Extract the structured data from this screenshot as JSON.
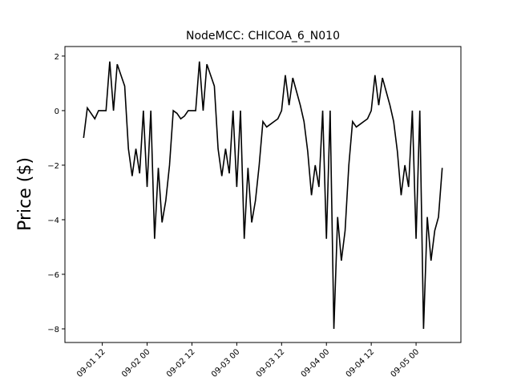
{
  "chart_data": {
    "type": "line",
    "title": "NodeMCC: CHICOA_6_N010",
    "ylabel": "Price ($)",
    "x": [
      "09-01 07",
      "09-01 08",
      "09-01 09",
      "09-01 10",
      "09-01 11",
      "09-01 12",
      "09-01 13",
      "09-01 14",
      "09-01 15",
      "09-01 16",
      "09-01 17",
      "09-01 18",
      "09-01 19",
      "09-01 20",
      "09-01 21",
      "09-01 22",
      "09-01 23",
      "09-02 00",
      "09-02 01",
      "09-02 02",
      "09-02 03",
      "09-02 04",
      "09-02 05",
      "09-02 06",
      "09-02 07",
      "09-02 08",
      "09-02 09",
      "09-02 10",
      "09-02 11",
      "09-02 12",
      "09-02 13",
      "09-02 14",
      "09-02 15",
      "09-02 16",
      "09-02 17",
      "09-02 18",
      "09-02 19",
      "09-02 20",
      "09-02 21",
      "09-02 22",
      "09-02 23",
      "09-03 00",
      "09-03 01",
      "09-03 02",
      "09-03 03",
      "09-03 04",
      "09-03 05",
      "09-03 06",
      "09-03 07",
      "09-03 08",
      "09-03 09",
      "09-03 10",
      "09-03 11",
      "09-03 12",
      "09-03 13",
      "09-03 14",
      "09-03 15",
      "09-03 16",
      "09-03 17",
      "09-03 18",
      "09-03 19",
      "09-03 20",
      "09-03 21",
      "09-03 22",
      "09-03 23",
      "09-04 00",
      "09-04 01",
      "09-04 02",
      "09-04 03",
      "09-04 04",
      "09-04 05",
      "09-04 06",
      "09-04 07",
      "09-04 08",
      "09-04 09",
      "09-04 10",
      "09-04 11",
      "09-04 12",
      "09-04 13",
      "09-04 14",
      "09-04 15",
      "09-04 16",
      "09-04 17",
      "09-04 18",
      "09-04 19",
      "09-04 20",
      "09-04 21",
      "09-04 22",
      "09-04 23",
      "09-05 00",
      "09-05 01",
      "09-05 02",
      "09-05 03",
      "09-05 04",
      "09-05 05",
      "09-05 06",
      "09-05 07"
    ],
    "series": [
      {
        "color": "#000000",
        "values": [
          -1.0,
          0.1,
          -0.1,
          -0.3,
          0.0,
          0.0,
          0.0,
          1.8,
          0.0,
          1.7,
          1.3,
          0.9,
          -1.4,
          -2.4,
          -1.4,
          -2.3,
          0.0,
          -2.8,
          0.0,
          -4.7,
          -2.1,
          -4.1,
          -3.3,
          -2.0,
          0.0,
          -0.1,
          -0.3,
          -0.2,
          0.0,
          0.0,
          0.0,
          1.8,
          0.0,
          1.7,
          1.3,
          0.9,
          -1.4,
          -2.4,
          -1.4,
          -2.3,
          0.0,
          -2.8,
          0.0,
          -4.7,
          -2.1,
          -4.1,
          -3.3,
          -2.0,
          -0.4,
          -0.6,
          -0.5,
          -0.4,
          -0.3,
          0.0,
          1.3,
          0.2,
          1.2,
          0.7,
          0.2,
          -0.4,
          -1.5,
          -3.1,
          -2.0,
          -2.8,
          0.0,
          -4.7,
          0.0,
          -8.0,
          -3.9,
          -5.5,
          -4.4,
          -2.0,
          -0.4,
          -0.6,
          -0.5,
          -0.4,
          -0.3,
          0.0,
          1.3,
          0.2,
          1.2,
          0.7,
          0.2,
          -0.4,
          -1.5,
          -3.1,
          -2.0,
          -2.8,
          0.0,
          -4.7,
          0.0,
          -8.0,
          -3.9,
          -5.5,
          -4.4,
          -3.9,
          -2.1
        ]
      }
    ],
    "xlim": [
      "09-01 02",
      "09-05 12"
    ],
    "xticks": [
      "09-01 12",
      "09-02 00",
      "09-02 12",
      "09-03 00",
      "09-03 12",
      "09-04 00",
      "09-04 12",
      "09-05 00"
    ],
    "ylim": [
      -8.5,
      2.35
    ],
    "yticks": [
      {
        "value": 2,
        "label": "2"
      },
      {
        "value": 0,
        "label": "0"
      },
      {
        "value": -2,
        "label": "−2"
      },
      {
        "value": -4,
        "label": "−4"
      },
      {
        "value": -6,
        "label": "−6"
      },
      {
        "value": -8,
        "label": "−8"
      }
    ]
  }
}
